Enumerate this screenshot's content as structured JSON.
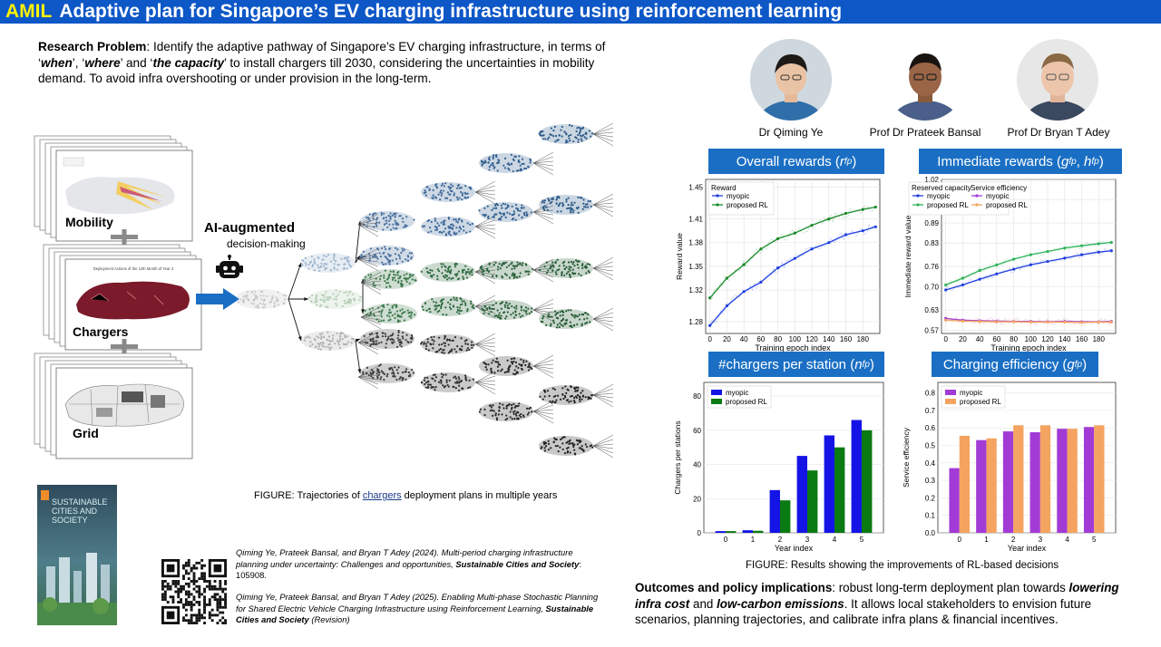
{
  "header": {
    "acronym": "AMIL",
    "title": "Adaptive plan for Singapore’s EV charging infrastructure using reinforcement learning"
  },
  "problem": {
    "lead": "Research Problem",
    "p1": ": Identify the adaptive pathway of Singapore’s EV charging infrastructure, in terms of ‘",
    "when": "when",
    "p2": "’, ‘",
    "where": "where",
    "p3": "’ and ‘",
    "capacity": "the capacity",
    "p4": "’ to install chargers till 2030, considering the uncertainties in mobility demand. To avoid infra overshooting or under provision in the long-term."
  },
  "people": [
    {
      "name": "Dr Qiming Ye"
    },
    {
      "name": "Prof Dr Prateek Bansal"
    },
    {
      "name": "Prof Dr Bryan T Adey"
    }
  ],
  "stacks": {
    "mobility": "Mobility",
    "chargers": "Chargers",
    "grid": "Grid",
    "chargers_map_title": "Deployment Actions of the 12th Month of Year 3"
  },
  "ai": {
    "title": "AI-augmented",
    "sub": "decision-making"
  },
  "figure_caption": {
    "prefix": "FIGURE: Trajectories of ",
    "link": "chargers",
    "suffix": " deployment plans in multiple years"
  },
  "journal_cover": {
    "l1": "SUSTAINABLE",
    "l2": "CITIES AND",
    "l3": "SOCIETY"
  },
  "refs": [
    {
      "authors": "Qiming Ye, Prateek Bansal, and Bryan T Adey (2024). Multi-period charging infrastructure planning under uncertainty: Challenges and opportunities, ",
      "journal": "Sustainable Cities and Society",
      "tail": ": 105908."
    },
    {
      "authors": "Qiming Ye, Prateek Bansal, and Bryan T Adey (2025). Enabling Multi-phase Stochastic Planning for Shared Electric Vehicle Charging Infrastructure using Reinforcement Learning, ",
      "journal": "Sustainable Cities and Society",
      "tail": " (Revision)"
    }
  ],
  "results_caption": "FIGURE: Results showing the improvements of RL-based decisions",
  "outcomes": {
    "lead": "Outcomes and policy implications",
    "p1": ": robust long-term deployment plan towards ",
    "b1": "lowering infra cost",
    "p2": " and ",
    "b2": "low-carbon emissions",
    "p3": ". It allows local stakeholders to envision future scenarios, planning trajectories, and calibrate infra plans & financial incentives."
  },
  "colors": {
    "header_bg": "#0d57c7",
    "acronym": "#fff200",
    "panel_header": "#1a6fc4",
    "myopic_blue": "#1f3fe0",
    "rl_green": "#1a8a2a",
    "myopic_purple": "#a23bd6",
    "rl_orange": "#f4a460"
  },
  "chart_data": [
    {
      "type": "line",
      "title": "Overall rewards",
      "title_sym": "r",
      "title_sub": "f",
      "title_sup": "p",
      "xlabel": "Training epoch index",
      "ylabel": "Reward value",
      "legend_title": "Reward",
      "xticks": [
        0,
        20,
        40,
        60,
        80,
        100,
        120,
        140,
        160,
        180
      ],
      "yticks": [
        "1.28",
        "1.32",
        "1.35",
        "1.38",
        "1.41",
        "1.45"
      ],
      "xlim": [
        -5,
        200
      ],
      "ylim": [
        1.265,
        1.46
      ],
      "series": [
        {
          "name": "myopic",
          "x": [
            0,
            20,
            40,
            60,
            80,
            100,
            120,
            140,
            160,
            180,
            195
          ],
          "values": [
            1.275,
            1.3,
            1.318,
            1.33,
            1.348,
            1.36,
            1.372,
            1.38,
            1.39,
            1.395,
            1.4
          ]
        },
        {
          "name": "proposed RL",
          "x": [
            0,
            20,
            40,
            60,
            80,
            100,
            120,
            140,
            160,
            180,
            195
          ],
          "values": [
            1.31,
            1.335,
            1.352,
            1.372,
            1.385,
            1.392,
            1.402,
            1.41,
            1.417,
            1.422,
            1.425
          ]
        }
      ]
    },
    {
      "type": "line",
      "title": "Immediate rewards",
      "xlabel": "Training epoch index",
      "ylabel": "Immediate reward value",
      "legend_title_a": "Reserved capacity",
      "legend_title_b": "Service efficiency",
      "xticks": [
        0,
        20,
        40,
        60,
        80,
        100,
        120,
        140,
        160,
        180
      ],
      "yticks": [
        "0.57",
        "0.63",
        "0.70",
        "0.76",
        "0.83",
        "0.89",
        "0.96",
        "1.02"
      ],
      "xlim": [
        -5,
        200
      ],
      "ylim": [
        0.56,
        1.02
      ],
      "series": [
        {
          "name": "myopic",
          "group": "Reserved capacity",
          "x": [
            0,
            20,
            40,
            60,
            80,
            100,
            120,
            140,
            160,
            180,
            195
          ],
          "values": [
            0.69,
            0.705,
            0.722,
            0.738,
            0.752,
            0.765,
            0.775,
            0.785,
            0.795,
            0.803,
            0.807
          ]
        },
        {
          "name": "proposed RL",
          "group": "Reserved capacity",
          "x": [
            0,
            20,
            40,
            60,
            80,
            100,
            120,
            140,
            160,
            180,
            195
          ],
          "values": [
            0.705,
            0.725,
            0.748,
            0.765,
            0.782,
            0.795,
            0.805,
            0.815,
            0.822,
            0.828,
            0.832
          ]
        },
        {
          "name": "myopic",
          "group": "Service efficiency",
          "x": [
            0,
            20,
            40,
            60,
            80,
            100,
            120,
            140,
            160,
            180,
            195
          ],
          "values": [
            0.605,
            0.6,
            0.598,
            0.597,
            0.596,
            0.596,
            0.595,
            0.596,
            0.595,
            0.595,
            0.596
          ]
        },
        {
          "name": "proposed RL",
          "group": "Service efficiency",
          "x": [
            0,
            20,
            40,
            60,
            80,
            100,
            120,
            140,
            160,
            180,
            195
          ],
          "values": [
            0.6,
            0.597,
            0.596,
            0.595,
            0.595,
            0.594,
            0.594,
            0.594,
            0.593,
            0.594,
            0.594
          ]
        }
      ]
    },
    {
      "type": "bar",
      "title": "#chargers per station",
      "xlabel": "Year index",
      "ylabel": "Chargers per stations",
      "categories": [
        "0",
        "1",
        "2",
        "3",
        "4",
        "5"
      ],
      "yticks": [
        "0",
        "20",
        "40",
        "60",
        "80"
      ],
      "ylim": [
        0,
        88
      ],
      "series": [
        {
          "name": "myopic",
          "values": [
            1,
            1.5,
            25,
            45,
            57,
            66
          ]
        },
        {
          "name": "proposed RL",
          "values": [
            1,
            1.2,
            19,
            36.5,
            50,
            60
          ]
        }
      ]
    },
    {
      "type": "bar",
      "title": "Charging efficiency",
      "xlabel": "Year index",
      "ylabel": "Service efficiency",
      "categories": [
        "0",
        "1",
        "2",
        "3",
        "4",
        "5"
      ],
      "yticks": [
        "0.0",
        "0.1",
        "0.2",
        "0.3",
        "0.4",
        "0.5",
        "0.6",
        "0.7",
        "0.8"
      ],
      "ylim": [
        0,
        0.86
      ],
      "series": [
        {
          "name": "myopic",
          "values": [
            0.37,
            0.53,
            0.58,
            0.575,
            0.595,
            0.605
          ]
        },
        {
          "name": "proposed RL",
          "values": [
            0.555,
            0.54,
            0.615,
            0.615,
            0.595,
            0.615
          ]
        }
      ]
    }
  ]
}
